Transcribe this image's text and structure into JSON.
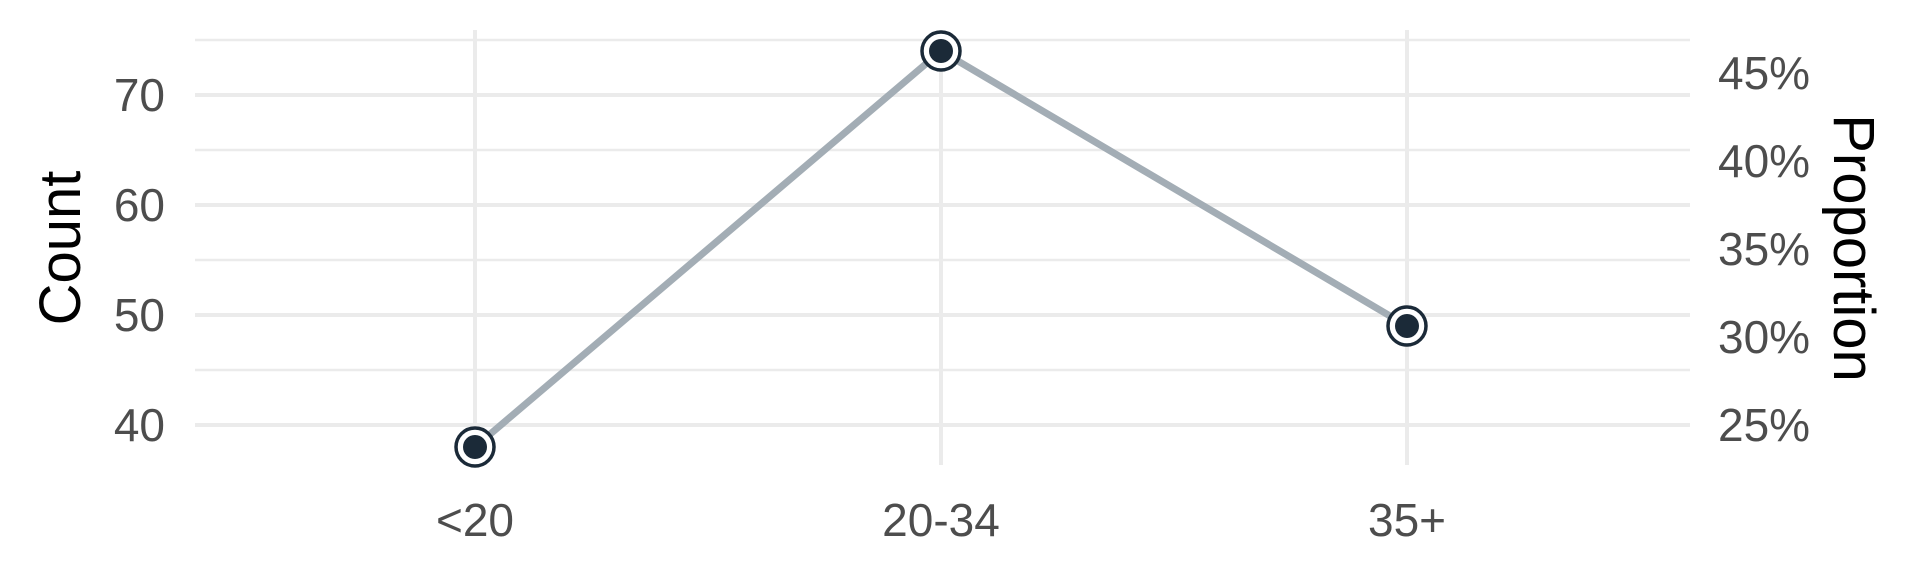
{
  "chart_data": {
    "type": "line",
    "categories": [
      "<20",
      "20-34",
      "35+"
    ],
    "series": [
      {
        "values": [
          38,
          74,
          49
        ]
      }
    ],
    "ylabel": "Count",
    "ylabel_right": "Proportion",
    "ylim": [
      36,
      76
    ],
    "y_ticks": [
      40,
      50,
      60,
      70
    ],
    "y_tick_labels": [
      "40",
      "50",
      "60",
      "70"
    ],
    "y2_ticks": [
      25,
      30,
      35,
      40,
      45
    ],
    "y2_tick_labels": [
      "25%",
      "30%",
      "35%",
      "40%",
      "45%"
    ],
    "grid": true,
    "line_color": "#a3adb5",
    "point_color": "#1b2a38"
  }
}
